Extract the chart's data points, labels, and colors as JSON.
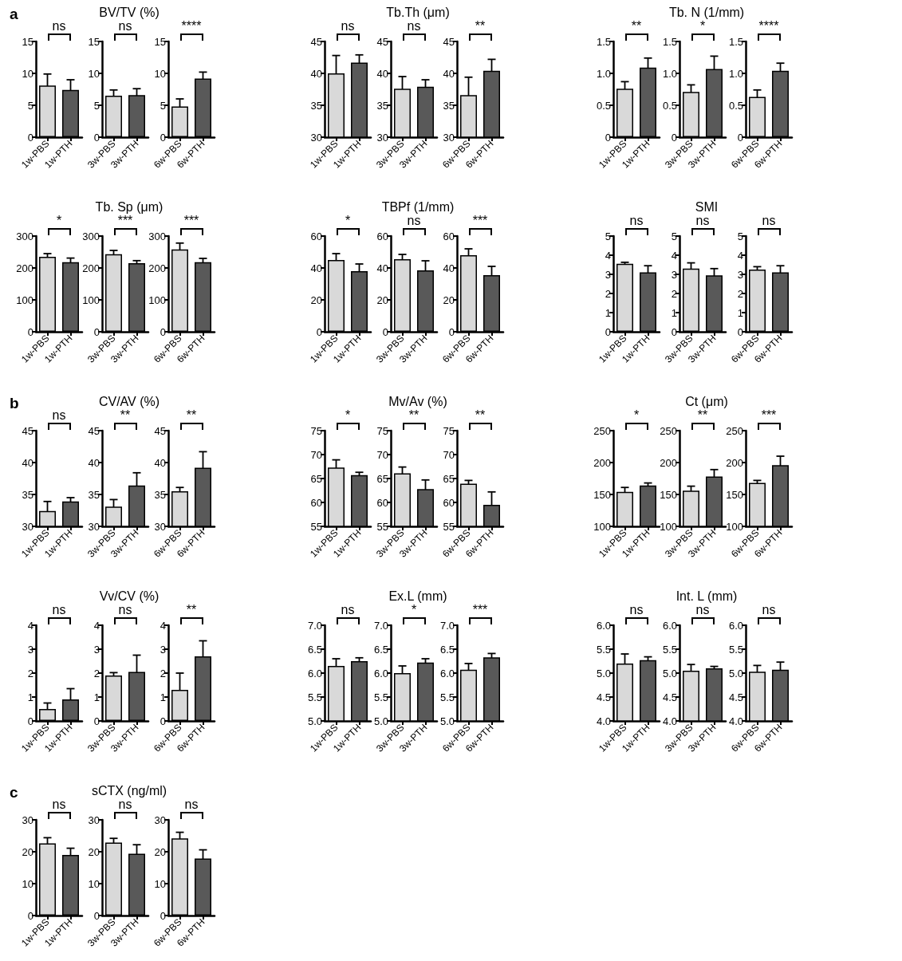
{
  "chart_data": [
    {
      "type": "bar",
      "categories": [
        "1w-PBS",
        "1w-PTH"
      ],
      "values": [
        8.1,
        7.4
      ],
      "errors": [
        1.8,
        1.6
      ],
      "colors": [
        "#d9d9d9",
        "#595959"
      ],
      "ylim": [
        0,
        15
      ],
      "yticks": [
        0,
        5,
        10,
        15
      ],
      "annotations": [
        "ns",
        "a"
      ]
    },
    {
      "type": "bar",
      "title": "BV/TV (%)",
      "categories": [
        "3w-PBS",
        "3w-PTH"
      ],
      "values": [
        6.5,
        6.6
      ],
      "errors": [
        0.9,
        1.0
      ],
      "colors": [
        "#d9d9d9",
        "#595959"
      ],
      "ylim": [
        0,
        15
      ],
      "yticks": [
        0,
        5,
        10,
        15
      ],
      "annotations": [
        "ns"
      ]
    },
    {
      "type": "bar",
      "categories": [
        "6w-PBS",
        "6w-PTH"
      ],
      "values": [
        4.8,
        9.2
      ],
      "errors": [
        1.2,
        1.0
      ],
      "colors": [
        "#d9d9d9",
        "#595959"
      ],
      "ylim": [
        0,
        15
      ],
      "yticks": [
        0,
        5,
        10,
        15
      ],
      "annotations": [
        "****"
      ]
    },
    {
      "type": "bar",
      "categories": [
        "1w-PBS",
        "1w-PTH"
      ],
      "values": [
        40.0,
        41.7
      ],
      "errors": [
        2.8,
        1.2
      ],
      "colors": [
        "#d9d9d9",
        "#595959"
      ],
      "ylim": [
        30,
        45
      ],
      "yticks": [
        30,
        35,
        40,
        45
      ],
      "annotations": [
        "ns"
      ]
    },
    {
      "type": "bar",
      "title": "Tb.Th (μm)",
      "categories": [
        "3w-PBS",
        "3w-PTH"
      ],
      "values": [
        37.6,
        37.9
      ],
      "errors": [
        1.9,
        1.1
      ],
      "colors": [
        "#d9d9d9",
        "#595959"
      ],
      "ylim": [
        30,
        45
      ],
      "yticks": [
        30,
        35,
        40,
        45
      ],
      "annotations": [
        "ns"
      ]
    },
    {
      "type": "bar",
      "categories": [
        "6w-PBS",
        "6w-PTH"
      ],
      "values": [
        36.6,
        40.4
      ],
      "errors": [
        2.8,
        1.8
      ],
      "colors": [
        "#d9d9d9",
        "#595959"
      ],
      "ylim": [
        30,
        45
      ],
      "yticks": [
        30,
        35,
        40,
        45
      ],
      "annotations": [
        "**"
      ]
    },
    {
      "type": "bar",
      "categories": [
        "1w-PBS",
        "1w-PTH"
      ],
      "values": [
        0.76,
        1.09
      ],
      "errors": [
        0.11,
        0.15
      ],
      "colors": [
        "#d9d9d9",
        "#595959"
      ],
      "ylim": [
        0,
        1.5
      ],
      "yticks": [
        0,
        0.5,
        {
          "value": 1,
          "label": "1.0"
        },
        1.5
      ],
      "annotations": [
        "**"
      ]
    },
    {
      "type": "bar",
      "title": "Tb. N (1/mm)",
      "categories": [
        "3w-PBS",
        "3w-PTH"
      ],
      "values": [
        0.71,
        1.07
      ],
      "errors": [
        0.11,
        0.2
      ],
      "colors": [
        "#d9d9d9",
        "#595959"
      ],
      "ylim": [
        0,
        1.5
      ],
      "yticks": [
        0,
        0.5,
        {
          "value": 1,
          "label": "1.0"
        },
        1.5
      ],
      "annotations": [
        "*"
      ]
    },
    {
      "type": "bar",
      "categories": [
        "6w-PBS",
        "6w-PTH"
      ],
      "values": [
        0.63,
        1.04
      ],
      "errors": [
        0.11,
        0.12
      ],
      "colors": [
        "#d9d9d9",
        "#595959"
      ],
      "ylim": [
        0,
        1.5
      ],
      "yticks": [
        0,
        0.5,
        {
          "value": 1,
          "label": "1.0"
        },
        1.5
      ],
      "annotations": [
        "****"
      ]
    },
    {
      "type": "bar",
      "categories": [
        "1w-PBS",
        "1w-PTH"
      ],
      "values": [
        235,
        218
      ],
      "errors": [
        10,
        13
      ],
      "colors": [
        "#d9d9d9",
        "#595959"
      ],
      "ylim": [
        0,
        300
      ],
      "yticks": [
        0,
        100,
        200,
        300
      ],
      "annotations": [
        "*"
      ]
    },
    {
      "type": "bar",
      "title": "Tb. Sp (μm)",
      "categories": [
        "3w-PBS",
        "3w-PTH"
      ],
      "values": [
        243,
        215
      ],
      "errors": [
        12,
        8
      ],
      "colors": [
        "#d9d9d9",
        "#595959"
      ],
      "ylim": [
        0,
        300
      ],
      "yticks": [
        0,
        100,
        200,
        300
      ],
      "annotations": [
        "***"
      ]
    },
    {
      "type": "bar",
      "categories": [
        "6w-PBS",
        "6w-PTH"
      ],
      "values": [
        258,
        218
      ],
      "errors": [
        20,
        12
      ],
      "colors": [
        "#d9d9d9",
        "#595959"
      ],
      "ylim": [
        0,
        300
      ],
      "yticks": [
        0,
        100,
        200,
        300
      ],
      "annotations": [
        "***"
      ]
    },
    {
      "type": "bar",
      "categories": [
        "1w-PBS",
        "1w-PTH"
      ],
      "values": [
        45,
        38
      ],
      "errors": [
        4,
        4.5
      ],
      "colors": [
        "#d9d9d9",
        "#595959"
      ],
      "ylim": [
        0,
        60
      ],
      "yticks": [
        0,
        20,
        40,
        60
      ],
      "annotations": [
        "*"
      ]
    },
    {
      "type": "bar",
      "title": "TBPf (1/mm)",
      "categories": [
        "3w-PBS",
        "3w-PTH"
      ],
      "values": [
        45.5,
        38.5
      ],
      "errors": [
        3,
        6
      ],
      "colors": [
        "#d9d9d9",
        "#595959"
      ],
      "ylim": [
        0,
        60
      ],
      "yticks": [
        0,
        20,
        40,
        60
      ],
      "annotations": [
        "ns"
      ]
    },
    {
      "type": "bar",
      "categories": [
        "6w-PBS",
        "6w-PTH"
      ],
      "values": [
        48,
        35.5
      ],
      "errors": [
        4,
        5.5
      ],
      "colors": [
        "#d9d9d9",
        "#595959"
      ],
      "ylim": [
        0,
        60
      ],
      "yticks": [
        0,
        20,
        40,
        60
      ],
      "annotations": [
        "***"
      ]
    },
    {
      "type": "bar",
      "categories": [
        "1w-PBS",
        "1w-PTH"
      ],
      "values": [
        3.55,
        3.1
      ],
      "errors": [
        0.08,
        0.35
      ],
      "colors": [
        "#d9d9d9",
        "#595959"
      ],
      "ylim": [
        0,
        5
      ],
      "yticks": [
        0,
        1,
        2,
        3,
        4,
        5
      ],
      "annotations": [
        "ns"
      ]
    },
    {
      "type": "bar",
      "title": "SMI",
      "categories": [
        "3w-PBS",
        "3w-PTH"
      ],
      "values": [
        3.3,
        2.95
      ],
      "errors": [
        0.3,
        0.35
      ],
      "colors": [
        "#d9d9d9",
        "#595959"
      ],
      "ylim": [
        0,
        5
      ],
      "yticks": [
        0,
        1,
        2,
        3,
        4,
        5
      ],
      "annotations": [
        "ns"
      ]
    },
    {
      "type": "bar",
      "categories": [
        "6w-PBS",
        "6w-PTH"
      ],
      "values": [
        3.25,
        3.1
      ],
      "errors": [
        0.15,
        0.35
      ],
      "colors": [
        "#d9d9d9",
        "#595959"
      ],
      "ylim": [
        0,
        5
      ],
      "yticks": [
        0,
        1,
        2,
        3,
        4,
        5
      ],
      "annotations": [
        "ns"
      ]
    },
    {
      "type": "bar",
      "categories": [
        "1w-PBS",
        "1w-PTH"
      ],
      "values": [
        32.4,
        33.9
      ],
      "errors": [
        1.5,
        0.6
      ],
      "colors": [
        "#d9d9d9",
        "#595959"
      ],
      "ylim": [
        30,
        45
      ],
      "yticks": [
        30,
        35,
        40,
        45
      ],
      "annotations": [
        "ns",
        "b"
      ]
    },
    {
      "type": "bar",
      "title": "CV/AV (%)",
      "categories": [
        "3w-PBS",
        "3w-PTH"
      ],
      "values": [
        33.1,
        36.4
      ],
      "errors": [
        1.1,
        2.0
      ],
      "colors": [
        "#d9d9d9",
        "#595959"
      ],
      "ylim": [
        30,
        45
      ],
      "yticks": [
        30,
        35,
        40,
        45
      ],
      "annotations": [
        "**"
      ]
    },
    {
      "type": "bar",
      "categories": [
        "6w-PBS",
        "6w-PTH"
      ],
      "values": [
        35.5,
        39.2
      ],
      "errors": [
        0.6,
        2.5
      ],
      "colors": [
        "#d9d9d9",
        "#595959"
      ],
      "ylim": [
        30,
        45
      ],
      "yticks": [
        30,
        35,
        40,
        45
      ],
      "annotations": [
        "**"
      ]
    },
    {
      "type": "bar",
      "categories": [
        "1w-PBS",
        "1w-PTH"
      ],
      "values": [
        67.3,
        65.7
      ],
      "errors": [
        1.6,
        0.6
      ],
      "colors": [
        "#d9d9d9",
        "#595959"
      ],
      "ylim": [
        55,
        75
      ],
      "yticks": [
        55,
        60,
        65,
        70,
        75
      ],
      "annotations": [
        "*"
      ]
    },
    {
      "type": "bar",
      "title": "Mv/Av (%)",
      "categories": [
        "3w-PBS",
        "3w-PTH"
      ],
      "values": [
        66.1,
        62.8
      ],
      "errors": [
        1.3,
        1.9
      ],
      "colors": [
        "#d9d9d9",
        "#595959"
      ],
      "ylim": [
        55,
        75
      ],
      "yticks": [
        55,
        60,
        65,
        70,
        75
      ],
      "annotations": [
        "**"
      ]
    },
    {
      "type": "bar",
      "categories": [
        "6w-PBS",
        "6w-PTH"
      ],
      "values": [
        63.9,
        59.5
      ],
      "errors": [
        0.7,
        2.7
      ],
      "colors": [
        "#d9d9d9",
        "#595959"
      ],
      "ylim": [
        55,
        75
      ],
      "yticks": [
        55,
        60,
        65,
        70,
        75
      ],
      "annotations": [
        "**"
      ]
    },
    {
      "type": "bar",
      "categories": [
        "1w-PBS",
        "1w-PTH"
      ],
      "values": [
        154,
        164
      ],
      "errors": [
        7,
        4
      ],
      "colors": [
        "#d9d9d9",
        "#595959"
      ],
      "ylim": [
        100,
        250
      ],
      "yticks": [
        100,
        150,
        200,
        250
      ],
      "annotations": [
        "*"
      ]
    },
    {
      "type": "bar",
      "title": "Ct (μm)",
      "categories": [
        "3w-PBS",
        "3w-PTH"
      ],
      "values": [
        156,
        178
      ],
      "errors": [
        7,
        11
      ],
      "colors": [
        "#d9d9d9",
        "#595959"
      ],
      "ylim": [
        100,
        250
      ],
      "yticks": [
        100,
        150,
        200,
        250
      ],
      "annotations": [
        "**"
      ]
    },
    {
      "type": "bar",
      "categories": [
        "6w-PBS",
        "6w-PTH"
      ],
      "values": [
        168,
        196
      ],
      "errors": [
        4,
        14
      ],
      "colors": [
        "#d9d9d9",
        "#595959"
      ],
      "ylim": [
        100,
        250
      ],
      "yticks": [
        100,
        150,
        200,
        250
      ],
      "annotations": [
        "***"
      ]
    },
    {
      "type": "bar",
      "categories": [
        "1w-PBS",
        "1w-PTH"
      ],
      "values": [
        0.5,
        0.9
      ],
      "errors": [
        0.25,
        0.45
      ],
      "colors": [
        "#d9d9d9",
        "#595959"
      ],
      "ylim": [
        0,
        4
      ],
      "yticks": [
        0,
        1,
        2,
        3,
        4
      ],
      "annotations": [
        "ns"
      ]
    },
    {
      "type": "bar",
      "title": "Vv/CV (%)",
      "categories": [
        "3w-PBS",
        "3w-PTH"
      ],
      "values": [
        1.9,
        2.05
      ],
      "errors": [
        0.12,
        0.7
      ],
      "colors": [
        "#d9d9d9",
        "#595959"
      ],
      "ylim": [
        0,
        4
      ],
      "yticks": [
        0,
        1,
        2,
        3,
        4
      ],
      "annotations": [
        "ns"
      ]
    },
    {
      "type": "bar",
      "categories": [
        "6w-PBS",
        "6w-PTH"
      ],
      "values": [
        1.3,
        2.7
      ],
      "errors": [
        0.7,
        0.65
      ],
      "colors": [
        "#d9d9d9",
        "#595959"
      ],
      "ylim": [
        0,
        4
      ],
      "yticks": [
        0,
        1,
        2,
        3,
        4
      ],
      "annotations": [
        "**"
      ]
    },
    {
      "type": "bar",
      "categories": [
        "1w-PBS",
        "1w-PTH"
      ],
      "values": [
        6.15,
        6.25
      ],
      "errors": [
        0.15,
        0.07
      ],
      "colors": [
        "#d9d9d9",
        "#595959"
      ],
      "ylim": [
        5,
        7
      ],
      "yticks": [
        {
          "value": 5,
          "label": "5.0"
        },
        5.5,
        {
          "value": 6,
          "label": "6.0"
        },
        6.5,
        {
          "value": 7,
          "label": "7.0"
        }
      ],
      "annotations": [
        "ns"
      ]
    },
    {
      "type": "bar",
      "title": "Ex.L (mm)",
      "categories": [
        "3w-PBS",
        "3w-PTH"
      ],
      "values": [
        6.0,
        6.22
      ],
      "errors": [
        0.15,
        0.08
      ],
      "colors": [
        "#d9d9d9",
        "#595959"
      ],
      "ylim": [
        5,
        7
      ],
      "yticks": [
        {
          "value": 5,
          "label": "5.0"
        },
        5.5,
        {
          "value": 6,
          "label": "6.0"
        },
        6.5,
        {
          "value": 7,
          "label": "7.0"
        }
      ],
      "annotations": [
        "*"
      ]
    },
    {
      "type": "bar",
      "categories": [
        "6w-PBS",
        "6w-PTH"
      ],
      "values": [
        6.07,
        6.33
      ],
      "errors": [
        0.13,
        0.08
      ],
      "colors": [
        "#d9d9d9",
        "#595959"
      ],
      "ylim": [
        5,
        7
      ],
      "yticks": [
        {
          "value": 5,
          "label": "5.0"
        },
        5.5,
        {
          "value": 6,
          "label": "6.0"
        },
        6.5,
        {
          "value": 7,
          "label": "7.0"
        }
      ],
      "annotations": [
        "***"
      ]
    },
    {
      "type": "bar",
      "categories": [
        "1w-PBS",
        "1w-PTH"
      ],
      "values": [
        5.2,
        5.27
      ],
      "errors": [
        0.2,
        0.07
      ],
      "colors": [
        "#d9d9d9",
        "#595959"
      ],
      "ylim": [
        4,
        6
      ],
      "yticks": [
        {
          "value": 4,
          "label": "4.0"
        },
        4.5,
        {
          "value": 5,
          "label": "5.0"
        },
        5.5,
        {
          "value": 6,
          "label": "6.0"
        }
      ],
      "annotations": [
        "ns"
      ]
    },
    {
      "type": "bar",
      "title": "Int. L (mm)",
      "categories": [
        "3w-PBS",
        "3w-PTH"
      ],
      "values": [
        5.05,
        5.1
      ],
      "errors": [
        0.13,
        0.04
      ],
      "colors": [
        "#d9d9d9",
        "#595959"
      ],
      "ylim": [
        4,
        6
      ],
      "yticks": [
        {
          "value": 4,
          "label": "4.0"
        },
        4.5,
        {
          "value": 5,
          "label": "5.0"
        },
        5.5,
        {
          "value": 6,
          "label": "6.0"
        }
      ],
      "annotations": [
        "ns"
      ]
    },
    {
      "type": "bar",
      "categories": [
        "6w-PBS",
        "6w-PTH"
      ],
      "values": [
        5.03,
        5.07
      ],
      "errors": [
        0.13,
        0.16
      ],
      "colors": [
        "#d9d9d9",
        "#595959"
      ],
      "ylim": [
        4,
        6
      ],
      "yticks": [
        {
          "value": 4,
          "label": "4.0"
        },
        4.5,
        {
          "value": 5,
          "label": "5.0"
        },
        5.5,
        {
          "value": 6,
          "label": "6.0"
        }
      ],
      "annotations": [
        "ns"
      ]
    },
    {
      "type": "bar",
      "categories": [
        "1w-PBS",
        "1w-PTH"
      ],
      "values": [
        22.6,
        19.0
      ],
      "errors": [
        1.8,
        2.1
      ],
      "colors": [
        "#d9d9d9",
        "#595959"
      ],
      "ylim": [
        0,
        30
      ],
      "yticks": [
        0,
        10,
        20,
        30
      ],
      "annotations": [
        "ns",
        "c"
      ]
    },
    {
      "type": "bar",
      "title": "sCTX (ng/ml)",
      "categories": [
        "3w-PBS",
        "3w-PTH"
      ],
      "values": [
        22.9,
        19.4
      ],
      "errors": [
        1.3,
        2.8
      ],
      "colors": [
        "#d9d9d9",
        "#595959"
      ],
      "ylim": [
        0,
        30
      ],
      "yticks": [
        0,
        10,
        20,
        30
      ],
      "annotations": [
        "ns"
      ]
    },
    {
      "type": "bar",
      "categories": [
        "6w-PBS",
        "6w-PTH"
      ],
      "values": [
        24.2,
        17.9
      ],
      "errors": [
        1.9,
        2.7
      ],
      "colors": [
        "#d9d9d9",
        "#595959"
      ],
      "ylim": [
        0,
        30
      ],
      "yticks": [
        0,
        10,
        20,
        30
      ],
      "annotations": [
        "ns"
      ]
    }
  ]
}
